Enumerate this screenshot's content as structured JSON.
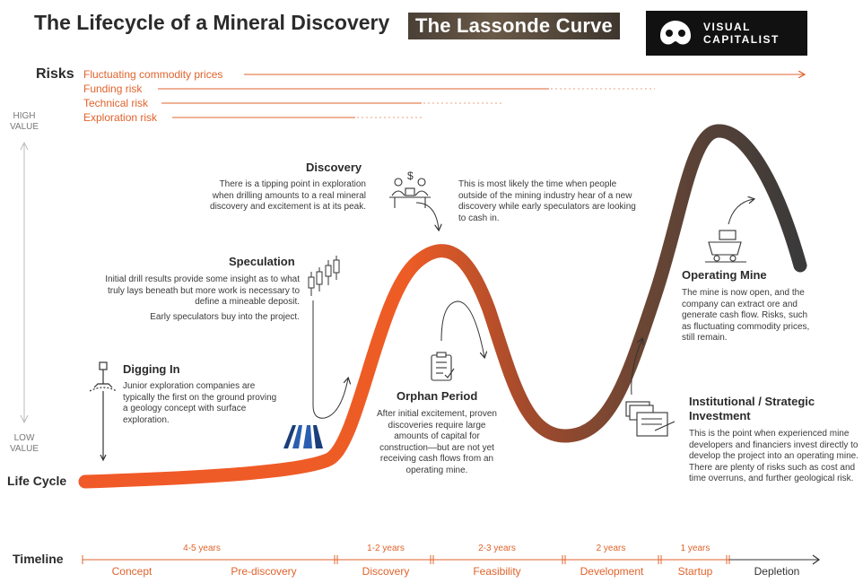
{
  "title": "The Lifecycle of a Mineral Discovery",
  "badge": "The Lassonde Curve",
  "logo": {
    "line1": "VISUAL",
    "line2": "CAPITALIST"
  },
  "risks": {
    "heading": "Risks",
    "items": [
      "Fluctuating commodity prices",
      "Funding risk",
      "Technical risk",
      "Exploration risk"
    ]
  },
  "axis": {
    "high": "HIGH VALUE",
    "low": "LOW VALUE"
  },
  "lifecycle_label": "Life Cycle",
  "stages": {
    "discovery": {
      "title": "Discovery",
      "desc": "There is a tipping point in exploration when drilling amounts to a real mineral discovery and excitement is at its peak.",
      "note": "This is most likely the time when people outside of the mining industry hear of a new discovery while early speculators are looking to cash in."
    },
    "speculation": {
      "title": "Speculation",
      "desc": "Initial drill results provide some insight as to what truly lays beneath but more work is necessary to define a mineable deposit.",
      "note": "Early speculators buy into the project."
    },
    "digging_in": {
      "title": "Digging In",
      "desc": "Junior exploration companies are typically the first on the ground proving a geology concept with surface exploration."
    },
    "orphan": {
      "title": "Orphan Period",
      "desc": "After initial excitement, proven discoveries require large amounts of capital for construction—but are not yet receiving cash flows from an operating mine."
    },
    "operating": {
      "title": "Operating Mine",
      "desc": "The mine is now open, and the company can extract ore and generate cash flow. Risks, such as fluctuating commodity prices, still remain."
    },
    "institutional": {
      "title": "Institutional / Strategic Investment",
      "desc": "This is the point when experienced mine developers and financiers invest directly to develop the project into an operating mine. There are plenty of risks such as cost and time overruns, and further geological risk."
    }
  },
  "timeline": {
    "label": "Timeline",
    "years": [
      "4-5 years",
      "1-2 years",
      "2-3 years",
      "2 years",
      "1 years"
    ],
    "phases": [
      "Concept",
      "Pre-discovery",
      "Discovery",
      "Feasibility",
      "Development",
      "Startup",
      "Depletion"
    ]
  },
  "colors": {
    "accent": "#e0632d",
    "curve_start": "#f05a28",
    "curve_end": "#3a3a3a"
  },
  "icons": [
    "drill-rig-icon",
    "candlestick-icon",
    "mining-company-logo-icon",
    "money-desk-icon",
    "checklist-icon",
    "mine-cart-icon",
    "investment-documents-icon"
  ]
}
